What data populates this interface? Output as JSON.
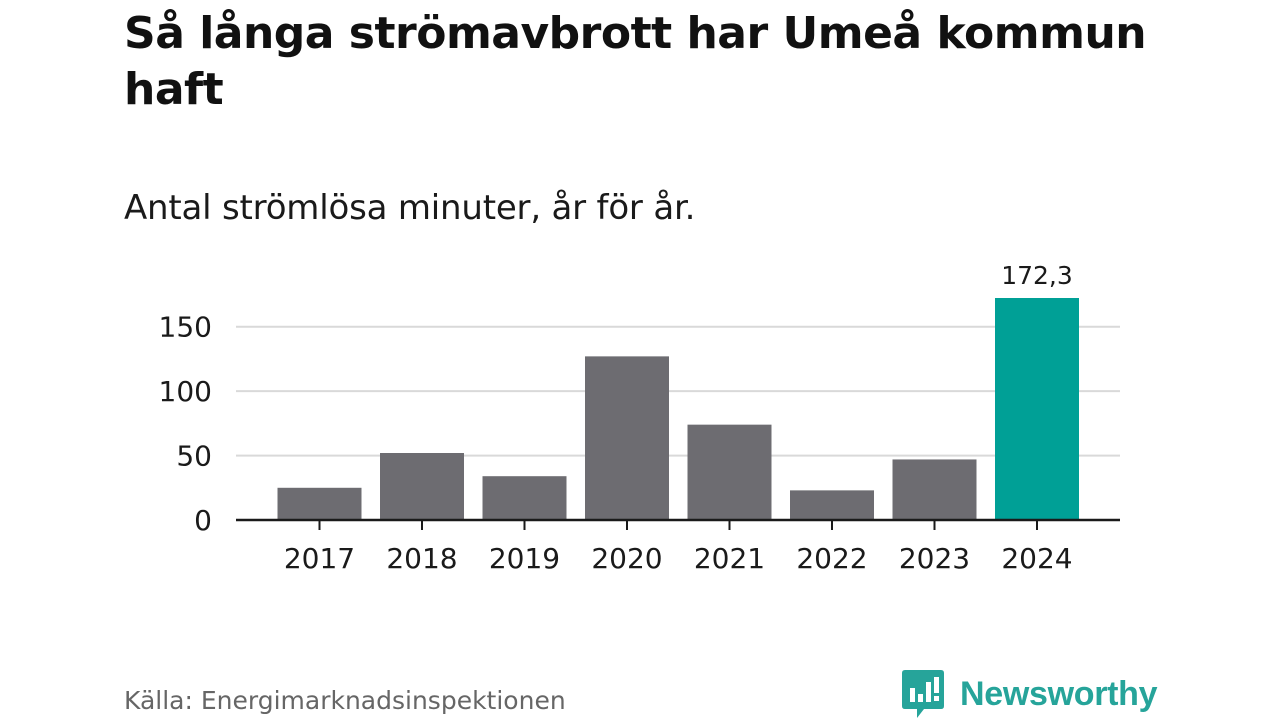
{
  "title": "Så långa strömavbrott har Umeå kommun haft",
  "subtitle": "Antal strömlösa minuter, år för år.",
  "source": "Källa: Energimarknadsinspektionen",
  "brand": {
    "name": "Newsworthy",
    "icon": "newsworthy-logo-icon",
    "color": "#26a49a"
  },
  "colors": {
    "bar": "#6d6c71",
    "highlight": "#00a096",
    "grid": "#d9d9d9",
    "axis": "#1a1a1a",
    "text": "#1a1a1a"
  },
  "chart_data": {
    "type": "bar",
    "title": "Så långa strömavbrott har Umeå kommun haft",
    "subtitle": "Antal strömlösa minuter, år för år.",
    "categories": [
      "2017",
      "2018",
      "2019",
      "2020",
      "2021",
      "2022",
      "2023",
      "2024"
    ],
    "values": [
      25,
      52,
      34,
      127,
      74,
      23,
      47,
      172.3
    ],
    "highlight_index": 7,
    "data_labels": [
      {
        "index": 7,
        "text": "172,3"
      }
    ],
    "yticks": [
      0,
      50,
      100,
      150
    ],
    "ylim": [
      0,
      172.3
    ],
    "xlabel": "",
    "ylabel": "",
    "grid": true,
    "legend": "none"
  }
}
